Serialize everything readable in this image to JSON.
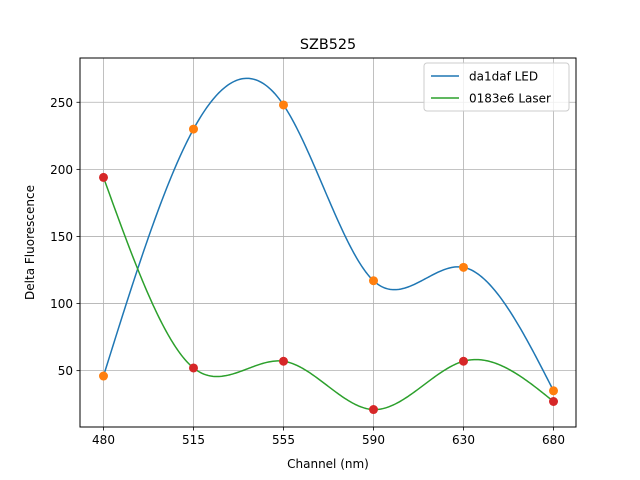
{
  "chart_data": {
    "type": "line",
    "title": "SZB525",
    "xlabel": "Channel (nm)",
    "ylabel": "Delta Fluorescence",
    "categories": [
      "480",
      "515",
      "555",
      "590",
      "630",
      "680"
    ],
    "ylim": [
      8,
      283
    ],
    "yticks": [
      50,
      100,
      150,
      200,
      250
    ],
    "grid": true,
    "legend_position": "top-right",
    "series": [
      {
        "name": "da1daf LED",
        "line_color": "#1f77b4",
        "marker_color": "#ff7f0e",
        "values": [
          46,
          230,
          248,
          117,
          127,
          35
        ]
      },
      {
        "name": "0183e6 Laser",
        "line_color": "#2ca02c",
        "marker_color": "#d62728",
        "values": [
          194,
          52,
          57,
          21,
          57,
          27
        ]
      }
    ]
  }
}
